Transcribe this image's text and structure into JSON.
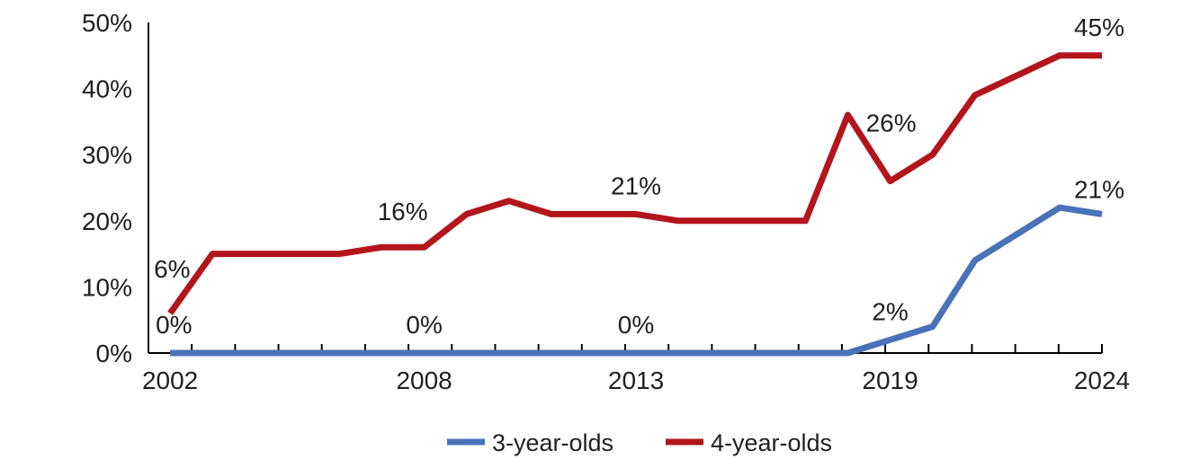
{
  "chart_data": {
    "type": "line",
    "x": [
      2002,
      2003,
      2004,
      2005,
      2006,
      2007,
      2008,
      2009,
      2010,
      2011,
      2012,
      2013,
      2014,
      2015,
      2016,
      2017,
      2018,
      2019,
      2020,
      2021,
      2022,
      2023,
      2024
    ],
    "x_tick_labels": [
      {
        "x": 2002,
        "label": "2002"
      },
      {
        "x": 2008,
        "label": "2008"
      },
      {
        "x": 2013,
        "label": "2013"
      },
      {
        "x": 2019,
        "label": "2019"
      },
      {
        "x": 2024,
        "label": "2024"
      }
    ],
    "y_ticks": [
      {
        "value": 0,
        "label": "0%"
      },
      {
        "value": 10,
        "label": "10%"
      },
      {
        "value": 20,
        "label": "20%"
      },
      {
        "value": 30,
        "label": "30%"
      },
      {
        "value": 40,
        "label": "40%"
      },
      {
        "value": 50,
        "label": "50%"
      }
    ],
    "ylim": [
      0,
      50
    ],
    "title": "",
    "xlabel": "",
    "ylabel": "",
    "grid": false,
    "legend_position": "bottom",
    "series": [
      {
        "name": "3-year-olds",
        "color": "#4a72b8",
        "values": [
          0,
          0,
          0,
          0,
          0,
          0,
          0,
          0,
          0,
          0,
          0,
          0,
          0,
          0,
          0,
          0,
          0,
          2,
          4,
          14,
          18,
          22,
          21
        ]
      },
      {
        "name": "4-year-olds",
        "color": "#b3151d",
        "values": [
          6,
          15,
          15,
          15,
          15,
          16,
          16,
          21,
          23,
          21,
          21,
          21,
          20,
          20,
          20,
          20,
          36,
          26,
          30,
          39,
          42,
          45,
          45
        ]
      }
    ],
    "data_labels": [
      {
        "series": 0,
        "x": 2002,
        "text": "0%"
      },
      {
        "series": 0,
        "x": 2008,
        "text": "0%"
      },
      {
        "series": 0,
        "x": 2013,
        "text": "0%"
      },
      {
        "series": 0,
        "x": 2019,
        "text": "2%"
      },
      {
        "series": 0,
        "x": 2024,
        "text": "21%"
      },
      {
        "series": 1,
        "x": 2002,
        "text": "6%"
      },
      {
        "series": 1,
        "x": 2008,
        "text": "16%"
      },
      {
        "series": 1,
        "x": 2013,
        "text": "21%"
      },
      {
        "series": 1,
        "x": 2019,
        "text": "26%"
      },
      {
        "series": 1,
        "x": 2024,
        "text": "45%"
      }
    ]
  }
}
